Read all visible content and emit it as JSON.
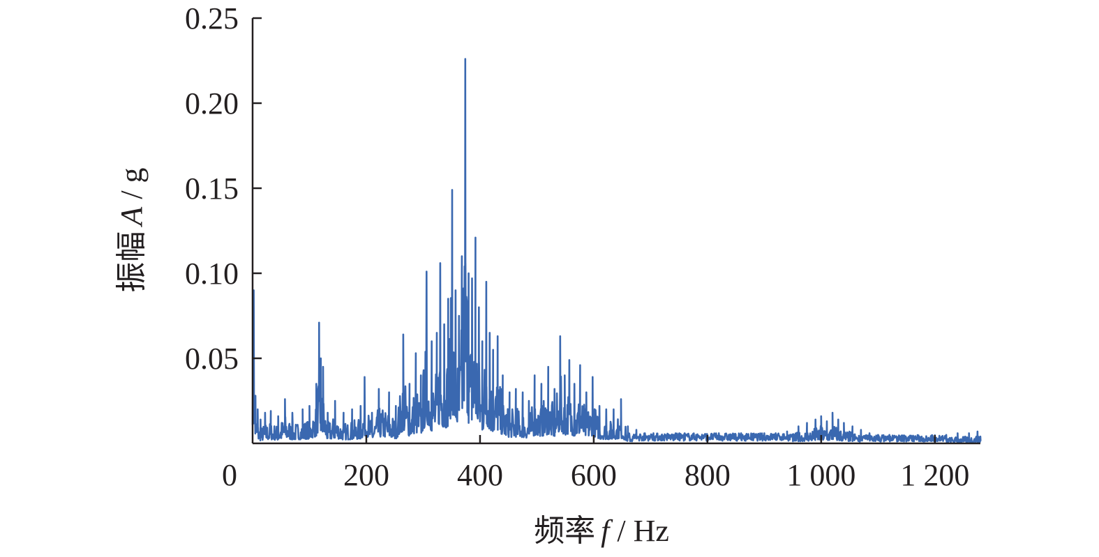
{
  "chart_data": {
    "type": "line",
    "title": "",
    "xlabel": {
      "prefix": "频率",
      "symbol": "f",
      "unit": " / Hz"
    },
    "ylabel": {
      "prefix": "振幅",
      "symbol": "A",
      "unit": " / g"
    },
    "xlim": [
      0,
      1280
    ],
    "ylim": [
      0,
      0.25
    ],
    "x_ticks": [
      {
        "value": 0,
        "label": "0"
      },
      {
        "value": 200,
        "label": "200"
      },
      {
        "value": 400,
        "label": "400"
      },
      {
        "value": 600,
        "label": "600"
      },
      {
        "value": 800,
        "label": "800"
      },
      {
        "value": 1000,
        "label": "1 000"
      },
      {
        "value": 1200,
        "label": "1 200"
      }
    ],
    "y_ticks": [
      {
        "value": 0.05,
        "label": "0.05"
      },
      {
        "value": 0.1,
        "label": "0.10"
      },
      {
        "value": 0.15,
        "label": "0.15"
      },
      {
        "value": 0.2,
        "label": "0.20"
      },
      {
        "value": 0.25,
        "label": "0.25"
      }
    ],
    "grid": false,
    "legend": "none",
    "series": [
      {
        "color": "#3a68b0",
        "peaks": [
          [
            2,
            0.09
          ],
          [
            5,
            0.028
          ],
          [
            9,
            0.02
          ],
          [
            14,
            0.014
          ],
          [
            22,
            0.018
          ],
          [
            32,
            0.019
          ],
          [
            45,
            0.016
          ],
          [
            57,
            0.026
          ],
          [
            70,
            0.018
          ],
          [
            88,
            0.02
          ],
          [
            100,
            0.022
          ],
          [
            112,
            0.035
          ],
          [
            117,
            0.071
          ],
          [
            120,
            0.05
          ],
          [
            124,
            0.045
          ],
          [
            132,
            0.018
          ],
          [
            145,
            0.025
          ],
          [
            160,
            0.018
          ],
          [
            175,
            0.02
          ],
          [
            190,
            0.022
          ],
          [
            197,
            0.039
          ],
          [
            210,
            0.018
          ],
          [
            222,
            0.032
          ],
          [
            240,
            0.03
          ],
          [
            252,
            0.022
          ],
          [
            265,
            0.064
          ],
          [
            276,
            0.035
          ],
          [
            287,
            0.053
          ],
          [
            296,
            0.04
          ],
          [
            306,
            0.101
          ],
          [
            315,
            0.06
          ],
          [
            324,
            0.065
          ],
          [
            330,
            0.106
          ],
          [
            337,
            0.07
          ],
          [
            344,
            0.085
          ],
          [
            351,
            0.149
          ],
          [
            357,
            0.09
          ],
          [
            363,
            0.075
          ],
          [
            368,
            0.11
          ],
          [
            374,
            0.226
          ],
          [
            380,
            0.1
          ],
          [
            386,
            0.097
          ],
          [
            392,
            0.121
          ],
          [
            398,
            0.08
          ],
          [
            404,
            0.06
          ],
          [
            411,
            0.095
          ],
          [
            417,
            0.065
          ],
          [
            423,
            0.055
          ],
          [
            431,
            0.063
          ],
          [
            440,
            0.04
          ],
          [
            452,
            0.03
          ],
          [
            463,
            0.032
          ],
          [
            475,
            0.03
          ],
          [
            486,
            0.025
          ],
          [
            496,
            0.04
          ],
          [
            508,
            0.035
          ],
          [
            520,
            0.045
          ],
          [
            531,
            0.032
          ],
          [
            541,
            0.063
          ],
          [
            549,
            0.04
          ],
          [
            557,
            0.049
          ],
          [
            566,
            0.035
          ],
          [
            576,
            0.046
          ],
          [
            587,
            0.03
          ],
          [
            598,
            0.039
          ],
          [
            610,
            0.022
          ],
          [
            622,
            0.02
          ],
          [
            635,
            0.02
          ],
          [
            648,
            0.026
          ],
          [
            660,
            0.01
          ],
          [
            675,
            0.008
          ],
          [
            690,
            0.006
          ],
          [
            705,
            0.006
          ],
          [
            720,
            0.005
          ],
          [
            740,
            0.005
          ],
          [
            760,
            0.006
          ],
          [
            780,
            0.005
          ],
          [
            800,
            0.005
          ],
          [
            820,
            0.006
          ],
          [
            840,
            0.005
          ],
          [
            860,
            0.005
          ],
          [
            880,
            0.005
          ],
          [
            900,
            0.006
          ],
          [
            920,
            0.006
          ],
          [
            940,
            0.007
          ],
          [
            960,
            0.01
          ],
          [
            975,
            0.012
          ],
          [
            990,
            0.014
          ],
          [
            1000,
            0.016
          ],
          [
            1010,
            0.013
          ],
          [
            1020,
            0.018
          ],
          [
            1030,
            0.014
          ],
          [
            1040,
            0.012
          ],
          [
            1055,
            0.01
          ],
          [
            1070,
            0.008
          ],
          [
            1085,
            0.006
          ],
          [
            1100,
            0.005
          ],
          [
            1120,
            0.005
          ],
          [
            1140,
            0.004
          ],
          [
            1160,
            0.004
          ],
          [
            1180,
            0.003
          ],
          [
            1200,
            0.004
          ],
          [
            1220,
            0.005
          ],
          [
            1240,
            0.006
          ],
          [
            1260,
            0.006
          ],
          [
            1275,
            0.007
          ],
          [
            1280,
            0.004
          ]
        ]
      }
    ]
  }
}
